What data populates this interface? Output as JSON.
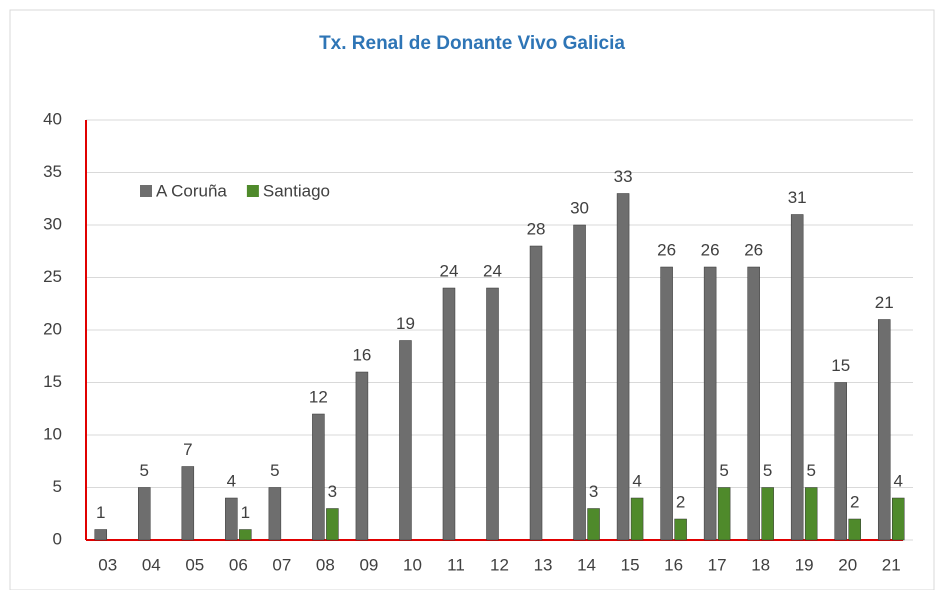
{
  "chart_data": {
    "type": "bar",
    "title": "Tx. Renal de Donante Vivo Galicia",
    "categories": [
      "03",
      "04",
      "05",
      "06",
      "07",
      "08",
      "09",
      "10",
      "11",
      "12",
      "13",
      "14",
      "15",
      "16",
      "17",
      "18",
      "19",
      "20",
      "21"
    ],
    "series": [
      {
        "name": "A Coruña",
        "color": "#6e6e6e",
        "values": [
          1,
          5,
          7,
          4,
          5,
          12,
          16,
          19,
          24,
          24,
          28,
          30,
          33,
          26,
          26,
          26,
          31,
          15,
          21
        ]
      },
      {
        "name": "Santiago",
        "color": "#4f8a2b",
        "values": [
          null,
          null,
          null,
          1,
          null,
          3,
          null,
          null,
          null,
          null,
          null,
          3,
          4,
          2,
          5,
          5,
          5,
          2,
          4
        ]
      }
    ],
    "ylim": [
      0,
      40
    ],
    "yticks": [
      0,
      5,
      10,
      15,
      20,
      25,
      30,
      35,
      40
    ],
    "grid": true,
    "legend": "top-left"
  }
}
